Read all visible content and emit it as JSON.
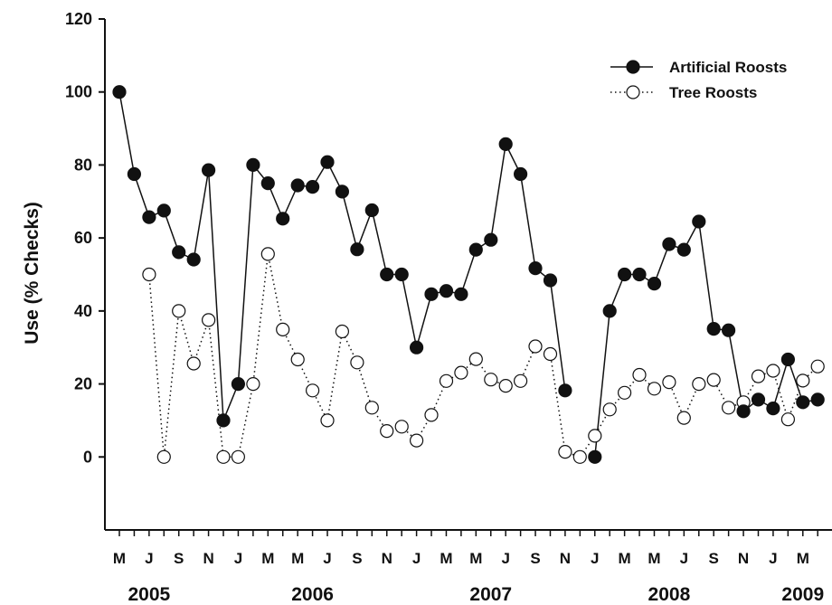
{
  "chart_data": {
    "type": "line",
    "title": "",
    "xlabel": "",
    "ylabel": "Use (% Checks)",
    "ylim": [
      -20,
      120
    ],
    "yticks": [
      0,
      20,
      40,
      60,
      80,
      100,
      120
    ],
    "grid": false,
    "legend_position": "top-right",
    "month_labels": [
      "M",
      "J",
      "S",
      "N",
      "J",
      "M",
      "M",
      "J",
      "S",
      "N",
      "J",
      "M",
      "M",
      "J",
      "S",
      "N",
      "J",
      "M",
      "M",
      "J",
      "S",
      "N",
      "J",
      "M"
    ],
    "year_labels": [
      {
        "label": "2005",
        "month_index": 2
      },
      {
        "label": "2006",
        "month_index": 13
      },
      {
        "label": "2007",
        "month_index": 25
      },
      {
        "label": "2008",
        "month_index": 37
      },
      {
        "label": "2009",
        "month_index": 46
      }
    ],
    "x": [
      0,
      1,
      2,
      3,
      4,
      5,
      6,
      7,
      8,
      9,
      10,
      11,
      12,
      13,
      14,
      15,
      16,
      17,
      18,
      19,
      20,
      21,
      22,
      23,
      24,
      25,
      26,
      27,
      28,
      29,
      30,
      31,
      32,
      33,
      34,
      35,
      36,
      37,
      38,
      39,
      40,
      41,
      42,
      43,
      44,
      45,
      46,
      47
    ],
    "series": [
      {
        "name": "Artificial Roosts",
        "marker": "filled-circle",
        "line": "solid",
        "values": [
          100,
          77.5,
          65.7,
          67.5,
          56.1,
          54.1,
          78.6,
          10,
          20,
          80,
          75,
          65.3,
          74.4,
          74,
          80.8,
          72.7,
          56.9,
          67.6,
          50,
          50,
          30,
          44.6,
          45.5,
          44.6,
          56.8,
          59.5,
          85.7,
          77.5,
          51.7,
          48.4,
          18.2,
          null,
          0,
          40,
          50,
          50,
          47.5,
          58.3,
          56.8,
          64.5,
          35.1,
          34.7,
          12.5,
          15.7,
          13.3,
          26.7,
          15,
          15.7
        ]
      },
      {
        "name": "Tree Roosts",
        "marker": "open-circle",
        "line": "dotted",
        "values": [
          null,
          null,
          50,
          0,
          40,
          25.6,
          37.5,
          0,
          0,
          20,
          55.6,
          34.9,
          26.7,
          18.2,
          10,
          34.4,
          25.9,
          13.5,
          7.1,
          8.3,
          4.5,
          11.5,
          20.8,
          23.1,
          26.8,
          21.2,
          19.5,
          20.8,
          30.3,
          28.2,
          1.4,
          0,
          5.8,
          13,
          17.6,
          22.5,
          18.7,
          20.5,
          10.7,
          20,
          21.1,
          13.5,
          15,
          22.1,
          23.6,
          10.3,
          20.9,
          24.8
        ]
      }
    ]
  }
}
